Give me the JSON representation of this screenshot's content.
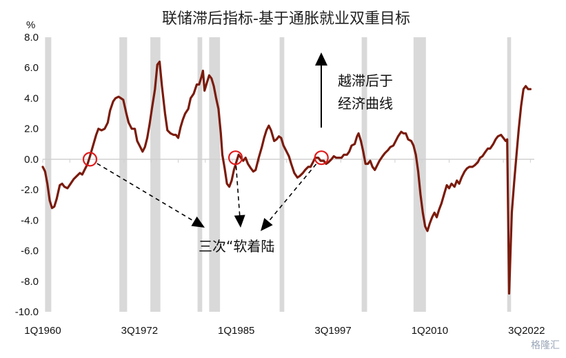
{
  "chart_data": {
    "type": "line",
    "title": "联储滞后指标-基于通胀就业双重目标",
    "unit_label": "%",
    "ylim": [
      -10,
      8
    ],
    "y_ticks": [
      "8.0",
      "6.0",
      "4.0",
      "2.0",
      "0.0",
      "-2.0",
      "-4.0",
      "-6.0",
      "-8.0",
      "-10.0"
    ],
    "y_tick_values": [
      8,
      6,
      4,
      2,
      0,
      -2,
      -4,
      -6,
      -8,
      -10
    ],
    "x_range": [
      1960.0,
      2023.5
    ],
    "x_ticks": [
      {
        "label": "1Q1960",
        "value": 1960.0
      },
      {
        "label": "3Q1972",
        "value": 1972.5
      },
      {
        "label": "1Q1985",
        "value": 1985.0
      },
      {
        "label": "3Q1997",
        "value": 1997.5
      },
      {
        "label": "1Q2010",
        "value": 2010.0
      },
      {
        "label": "3Q2022",
        "value": 2022.5
      }
    ],
    "grid": false,
    "recessions": [
      [
        1960.3,
        1961.1
      ],
      [
        1969.9,
        1970.9
      ],
      [
        1973.9,
        1975.2
      ],
      [
        1980.0,
        1980.6
      ],
      [
        1981.5,
        1982.9
      ],
      [
        1990.6,
        1991.2
      ],
      [
        2001.2,
        2001.9
      ],
      [
        2007.9,
        2009.5
      ],
      [
        2020.0,
        2020.5
      ]
    ],
    "series": [
      {
        "color": "#7a1b0c",
        "points": [
          [
            1960.0,
            -0.5
          ],
          [
            1960.3,
            -0.8
          ],
          [
            1960.6,
            -1.6
          ],
          [
            1960.9,
            -2.7
          ],
          [
            1961.2,
            -3.2
          ],
          [
            1961.5,
            -3.1
          ],
          [
            1961.8,
            -2.6
          ],
          [
            1962.2,
            -1.7
          ],
          [
            1962.5,
            -1.6
          ],
          [
            1962.8,
            -1.8
          ],
          [
            1963.2,
            -1.9
          ],
          [
            1963.6,
            -1.6
          ],
          [
            1964.0,
            -1.3
          ],
          [
            1964.4,
            -1.1
          ],
          [
            1964.8,
            -0.9
          ],
          [
            1965.1,
            -1.0
          ],
          [
            1965.4,
            -0.7
          ],
          [
            1965.8,
            -0.3
          ],
          [
            1966.1,
            0.2
          ],
          [
            1966.5,
            0.9
          ],
          [
            1966.9,
            1.6
          ],
          [
            1967.2,
            2.0
          ],
          [
            1967.6,
            1.9
          ],
          [
            1968.0,
            2.0
          ],
          [
            1968.4,
            2.4
          ],
          [
            1968.7,
            3.2
          ],
          [
            1969.1,
            3.8
          ],
          [
            1969.4,
            4.0
          ],
          [
            1969.8,
            4.1
          ],
          [
            1970.1,
            4.0
          ],
          [
            1970.4,
            3.9
          ],
          [
            1970.8,
            3.0
          ],
          [
            1971.1,
            2.4
          ],
          [
            1971.5,
            2.0
          ],
          [
            1971.9,
            2.0
          ],
          [
            1972.2,
            1.2
          ],
          [
            1972.6,
            0.8
          ],
          [
            1972.9,
            0.5
          ],
          [
            1973.2,
            0.8
          ],
          [
            1973.5,
            1.4
          ],
          [
            1973.8,
            2.3
          ],
          [
            1974.1,
            3.3
          ],
          [
            1974.5,
            4.6
          ],
          [
            1974.8,
            6.2
          ],
          [
            1975.1,
            6.4
          ],
          [
            1975.4,
            4.8
          ],
          [
            1975.8,
            3.0
          ],
          [
            1976.1,
            1.9
          ],
          [
            1976.5,
            1.7
          ],
          [
            1976.9,
            1.6
          ],
          [
            1977.2,
            1.6
          ],
          [
            1977.5,
            1.4
          ],
          [
            1977.8,
            2.1
          ],
          [
            1978.1,
            2.6
          ],
          [
            1978.4,
            3.0
          ],
          [
            1978.8,
            3.3
          ],
          [
            1979.1,
            4.0
          ],
          [
            1979.5,
            4.3
          ],
          [
            1979.9,
            4.9
          ],
          [
            1980.2,
            4.9
          ],
          [
            1980.5,
            5.4
          ],
          [
            1980.7,
            5.8
          ],
          [
            1980.9,
            4.5
          ],
          [
            1981.2,
            5.0
          ],
          [
            1981.5,
            5.5
          ],
          [
            1981.8,
            5.3
          ],
          [
            1982.1,
            4.8
          ],
          [
            1982.4,
            4.0
          ],
          [
            1982.7,
            3.3
          ],
          [
            1983.0,
            1.7
          ],
          [
            1983.2,
            0.3
          ],
          [
            1983.5,
            -0.6
          ],
          [
            1983.8,
            -1.6
          ],
          [
            1984.1,
            -1.8
          ],
          [
            1984.4,
            -1.4
          ],
          [
            1984.7,
            -0.7
          ],
          [
            1985.0,
            -0.2
          ],
          [
            1985.3,
            0.3
          ],
          [
            1985.6,
            0.1
          ],
          [
            1985.9,
            -0.1
          ],
          [
            1986.2,
            0.1
          ],
          [
            1986.5,
            -0.3
          ],
          [
            1986.9,
            -0.6
          ],
          [
            1987.2,
            -0.8
          ],
          [
            1987.5,
            -0.7
          ],
          [
            1987.9,
            0.1
          ],
          [
            1988.3,
            0.8
          ],
          [
            1988.6,
            1.4
          ],
          [
            1988.9,
            1.9
          ],
          [
            1989.2,
            2.2
          ],
          [
            1989.5,
            1.9
          ],
          [
            1989.9,
            1.2
          ],
          [
            1990.2,
            1.3
          ],
          [
            1990.5,
            1.5
          ],
          [
            1990.8,
            1.4
          ],
          [
            1991.1,
            0.9
          ],
          [
            1991.4,
            0.6
          ],
          [
            1991.8,
            0.2
          ],
          [
            1992.1,
            -0.3
          ],
          [
            1992.5,
            -0.9
          ],
          [
            1992.9,
            -1.2
          ],
          [
            1993.2,
            -1.1
          ],
          [
            1993.6,
            -0.9
          ],
          [
            1993.9,
            -0.7
          ],
          [
            1994.3,
            -0.5
          ],
          [
            1994.6,
            -0.5
          ],
          [
            1994.9,
            -0.2
          ],
          [
            1995.2,
            0.1
          ],
          [
            1995.6,
            0.1
          ],
          [
            1995.9,
            -0.1
          ],
          [
            1996.3,
            -0.1
          ],
          [
            1996.6,
            -0.3
          ],
          [
            1996.9,
            -0.2
          ],
          [
            1997.3,
            0.0
          ],
          [
            1997.6,
            0.2
          ],
          [
            1997.9,
            0.1
          ],
          [
            1998.3,
            0.1
          ],
          [
            1998.6,
            0.1
          ],
          [
            1998.9,
            0.3
          ],
          [
            1999.3,
            0.3
          ],
          [
            1999.6,
            0.5
          ],
          [
            1999.9,
            0.9
          ],
          [
            2000.3,
            1.0
          ],
          [
            2000.6,
            1.5
          ],
          [
            2000.8,
            1.7
          ],
          [
            2001.1,
            1.2
          ],
          [
            2001.4,
            0.5
          ],
          [
            2001.7,
            -0.3
          ],
          [
            2002.0,
            -0.3
          ],
          [
            2002.3,
            -0.1
          ],
          [
            2002.6,
            -0.5
          ],
          [
            2002.9,
            -0.7
          ],
          [
            2003.2,
            -0.4
          ],
          [
            2003.5,
            -0.1
          ],
          [
            2003.9,
            0.2
          ],
          [
            2004.2,
            0.4
          ],
          [
            2004.6,
            0.6
          ],
          [
            2004.9,
            0.8
          ],
          [
            2005.3,
            0.9
          ],
          [
            2005.6,
            1.2
          ],
          [
            2005.9,
            1.5
          ],
          [
            2006.3,
            1.8
          ],
          [
            2006.6,
            1.7
          ],
          [
            2006.9,
            1.7
          ],
          [
            2007.2,
            1.3
          ],
          [
            2007.6,
            1.2
          ],
          [
            2007.9,
            0.9
          ],
          [
            2008.2,
            0.3
          ],
          [
            2008.5,
            -0.8
          ],
          [
            2008.8,
            -2.3
          ],
          [
            2009.1,
            -3.5
          ],
          [
            2009.4,
            -4.4
          ],
          [
            2009.7,
            -4.7
          ],
          [
            2010.0,
            -4.2
          ],
          [
            2010.3,
            -3.8
          ],
          [
            2010.6,
            -3.5
          ],
          [
            2010.9,
            -3.8
          ],
          [
            2011.2,
            -3.3
          ],
          [
            2011.5,
            -2.9
          ],
          [
            2011.9,
            -2.2
          ],
          [
            2012.2,
            -1.7
          ],
          [
            2012.5,
            -1.9
          ],
          [
            2012.8,
            -1.6
          ],
          [
            2013.2,
            -1.8
          ],
          [
            2013.5,
            -1.4
          ],
          [
            2013.8,
            -1.6
          ],
          [
            2014.1,
            -1.2
          ],
          [
            2014.5,
            -0.8
          ],
          [
            2014.8,
            -0.6
          ],
          [
            2015.1,
            -0.5
          ],
          [
            2015.5,
            -0.5
          ],
          [
            2015.8,
            -0.4
          ],
          [
            2016.2,
            -0.2
          ],
          [
            2016.5,
            0.1
          ],
          [
            2016.8,
            0.2
          ],
          [
            2017.2,
            0.5
          ],
          [
            2017.5,
            0.7
          ],
          [
            2017.8,
            0.7
          ],
          [
            2018.2,
            1.0
          ],
          [
            2018.5,
            1.3
          ],
          [
            2018.8,
            1.5
          ],
          [
            2019.2,
            1.6
          ],
          [
            2019.5,
            1.4
          ],
          [
            2019.8,
            1.2
          ],
          [
            2020.0,
            1.3
          ],
          [
            2020.25,
            -8.8
          ],
          [
            2020.6,
            -3.5
          ],
          [
            2020.9,
            -1.5
          ],
          [
            2021.2,
            0.3
          ],
          [
            2021.5,
            2.0
          ],
          [
            2021.8,
            3.5
          ],
          [
            2022.1,
            4.6
          ],
          [
            2022.4,
            4.8
          ],
          [
            2022.7,
            4.6
          ],
          [
            2023.0,
            4.6
          ]
        ]
      }
    ],
    "annotations": {
      "arrow_text_line1": "越滞后于",
      "arrow_text_line2": "经济曲线",
      "soft_landing_label": "三次“软着陆",
      "soft_landing_points": [
        [
          1966.1,
          0.0
        ],
        [
          1984.9,
          0.1
        ],
        [
          1996.0,
          0.1
        ]
      ]
    },
    "watermark": "格隆汇"
  }
}
